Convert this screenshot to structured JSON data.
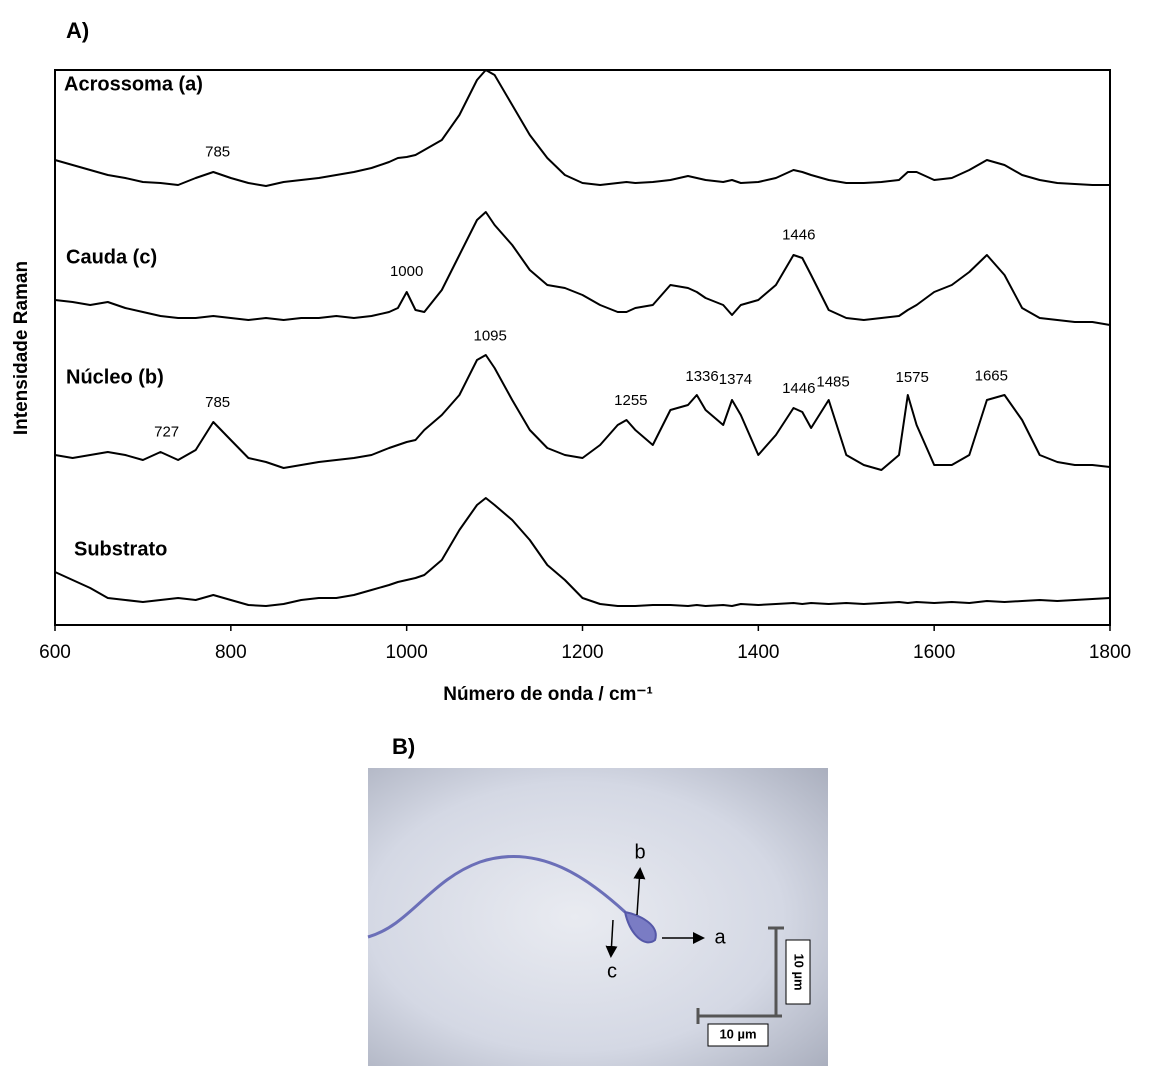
{
  "panel_a": "A)",
  "chart_data": {
    "type": "line",
    "x_label": "Número de onda / cm⁻¹",
    "y_label": "Intensidade Raman",
    "xlim": [
      600,
      1800
    ],
    "xticks": [
      600,
      800,
      1000,
      1200,
      1400,
      1600,
      1800
    ],
    "ylim": [
      0,
      555
    ],
    "x": [
      600,
      620,
      640,
      660,
      680,
      700,
      720,
      740,
      760,
      780,
      800,
      820,
      840,
      860,
      880,
      900,
      920,
      940,
      960,
      980,
      990,
      1000,
      1010,
      1020,
      1040,
      1060,
      1080,
      1090,
      1100,
      1120,
      1140,
      1160,
      1180,
      1200,
      1220,
      1240,
      1250,
      1260,
      1280,
      1300,
      1320,
      1330,
      1340,
      1360,
      1370,
      1380,
      1400,
      1420,
      1440,
      1450,
      1460,
      1480,
      1500,
      1520,
      1540,
      1560,
      1570,
      1580,
      1600,
      1620,
      1640,
      1660,
      1680,
      1700,
      1720,
      1740,
      1760,
      1780,
      1800
    ],
    "series": [
      {
        "name": "Acrossoma (a)",
        "color": "#000000",
        "peaks": [
          785
        ],
        "values": [
          465,
          460,
          455,
          450,
          447,
          443,
          442,
          440,
          447,
          453,
          447,
          442,
          439,
          443,
          445,
          447,
          450,
          453,
          457,
          463,
          467,
          468,
          470,
          475,
          485,
          510,
          545,
          555,
          550,
          520,
          490,
          467,
          450,
          442,
          440,
          442,
          443,
          442,
          443,
          445,
          449,
          447,
          445,
          443,
          445,
          442,
          443,
          447,
          455,
          453,
          450,
          445,
          442,
          442,
          443,
          445,
          453,
          453,
          445,
          447,
          455,
          465,
          460,
          450,
          445,
          442,
          441,
          440,
          440
        ]
      },
      {
        "name": "Cauda (c)",
        "color": "#000000",
        "peaks": [
          1000,
          1446
        ],
        "values": [
          325,
          323,
          320,
          323,
          317,
          313,
          309,
          307,
          307,
          309,
          307,
          305,
          307,
          305,
          307,
          307,
          309,
          307,
          309,
          313,
          317,
          333,
          315,
          313,
          335,
          370,
          405,
          413,
          400,
          380,
          355,
          340,
          337,
          330,
          320,
          313,
          313,
          317,
          320,
          340,
          337,
          333,
          327,
          320,
          310,
          320,
          325,
          340,
          370,
          367,
          350,
          315,
          307,
          305,
          307,
          309,
          315,
          320,
          333,
          340,
          353,
          370,
          350,
          317,
          307,
          305,
          303,
          303,
          300
        ]
      },
      {
        "name": "Núcleo (b)",
        "color": "#000000",
        "peaks": [
          727,
          785,
          1095,
          1255,
          1336,
          1374,
          1446,
          1485,
          1575,
          1665
        ],
        "values": [
          170,
          167,
          170,
          173,
          170,
          165,
          173,
          165,
          175,
          203,
          185,
          167,
          163,
          157,
          160,
          163,
          165,
          167,
          170,
          177,
          180,
          183,
          185,
          195,
          210,
          230,
          265,
          270,
          257,
          225,
          195,
          177,
          170,
          167,
          180,
          200,
          205,
          195,
          180,
          215,
          220,
          230,
          215,
          200,
          225,
          210,
          170,
          190,
          217,
          213,
          197,
          225,
          170,
          160,
          155,
          170,
          230,
          200,
          160,
          160,
          170,
          225,
          230,
          205,
          170,
          163,
          160,
          160,
          158
        ]
      },
      {
        "name": "Substrato",
        "color": "#000000",
        "peaks": [],
        "values": [
          53,
          45,
          37,
          27,
          25,
          23,
          25,
          27,
          25,
          30,
          25,
          20,
          19,
          21,
          25,
          27,
          27,
          30,
          35,
          40,
          43,
          45,
          47,
          50,
          65,
          95,
          120,
          127,
          120,
          105,
          85,
          60,
          45,
          27,
          21,
          19,
          19,
          19,
          20,
          20,
          19,
          20,
          19,
          20,
          19,
          21,
          20,
          21,
          22,
          21,
          22,
          21,
          22,
          21,
          22,
          23,
          22,
          23,
          22,
          23,
          22,
          24,
          23,
          24,
          25,
          24,
          25,
          26,
          27
        ]
      }
    ]
  },
  "image": {
    "title": "B)",
    "point_labels": [
      "a",
      "b",
      "c"
    ],
    "scale_bars": [
      "10 µm",
      "10 µm"
    ]
  }
}
